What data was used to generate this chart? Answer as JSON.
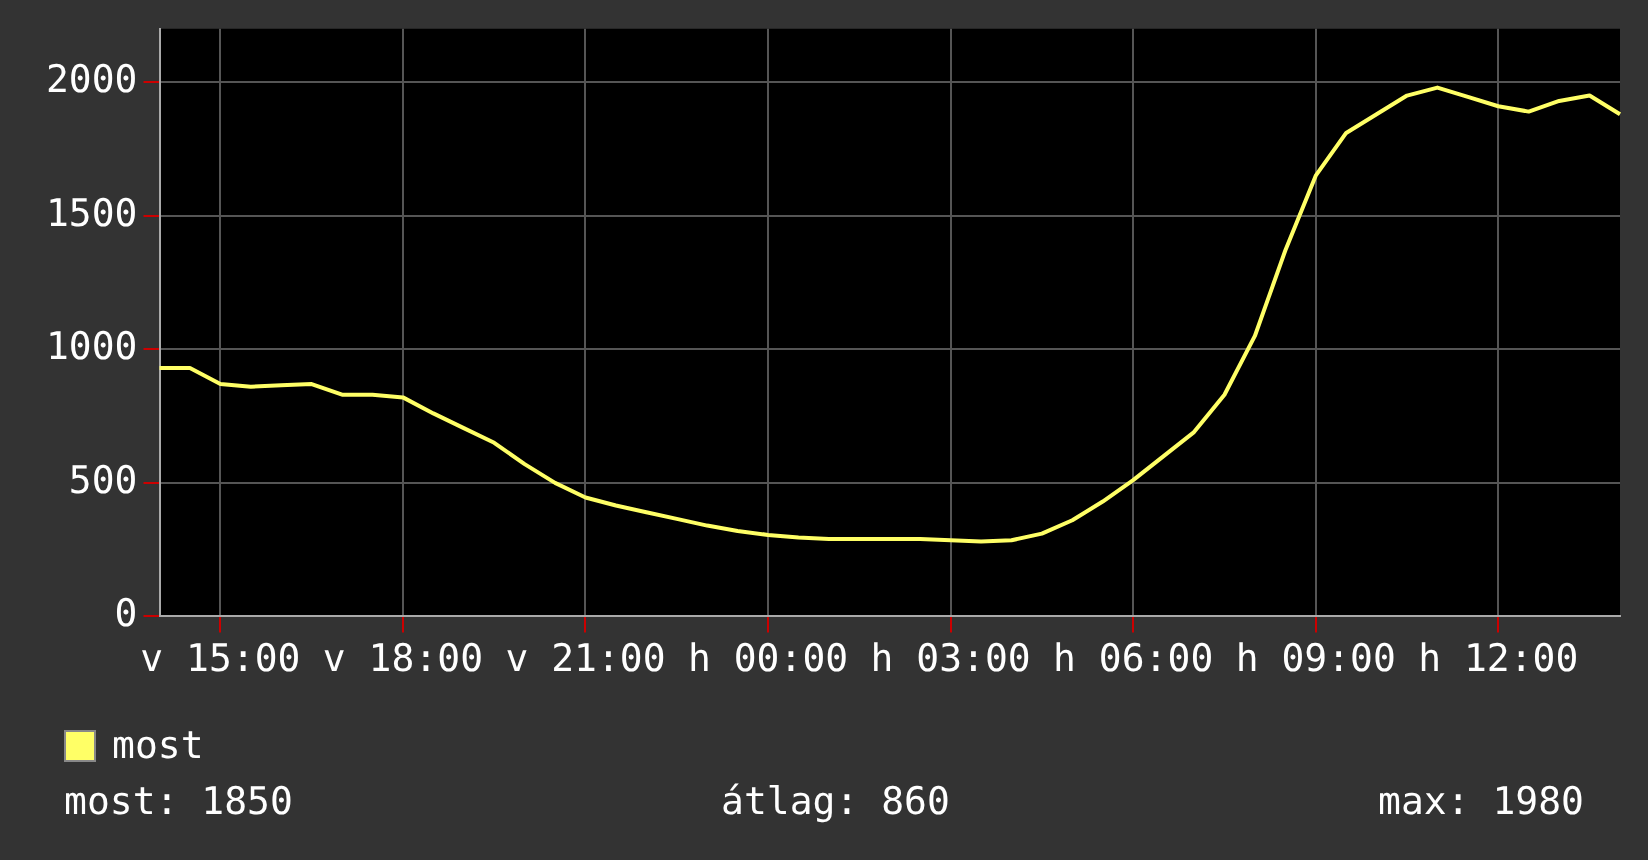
{
  "chart_data": {
    "type": "line",
    "legend": "bottom",
    "grid": true,
    "marker": "none",
    "line_style": "solid",
    "categories": [
      null,
      null,
      "v 15:00",
      null,
      null,
      null,
      null,
      null,
      "v 18:00",
      null,
      null,
      null,
      null,
      null,
      "v 21:00",
      null,
      null,
      null,
      null,
      null,
      "h 00:00",
      null,
      null,
      null,
      null,
      null,
      "h 03:00",
      null,
      null,
      null,
      null,
      null,
      "h 06:00",
      null,
      null,
      null,
      null,
      null,
      "h 09:00",
      null,
      null,
      null,
      null,
      null,
      "h 12:00",
      null,
      null,
      null,
      null
    ],
    "ylim": [
      0,
      2200
    ],
    "yticks": [
      0,
      500,
      1000,
      1500,
      2000
    ],
    "series": [
      {
        "name": "most",
        "color": "#ffff66",
        "values": [
          930,
          930,
          870,
          860,
          865,
          870,
          830,
          830,
          820,
          760,
          705,
          650,
          570,
          500,
          445,
          415,
          390,
          365,
          340,
          320,
          305,
          295,
          290,
          290,
          290,
          290,
          285,
          280,
          285,
          310,
          360,
          430,
          510,
          600,
          690,
          830,
          1050,
          1370,
          1650,
          1810,
          1880,
          1950,
          1980,
          1945,
          1910,
          1890,
          1930,
          1950,
          1880
        ]
      }
    ],
    "annotations": [
      "most: 1850",
      "átlag: 860",
      "max: 1980"
    ]
  }
}
